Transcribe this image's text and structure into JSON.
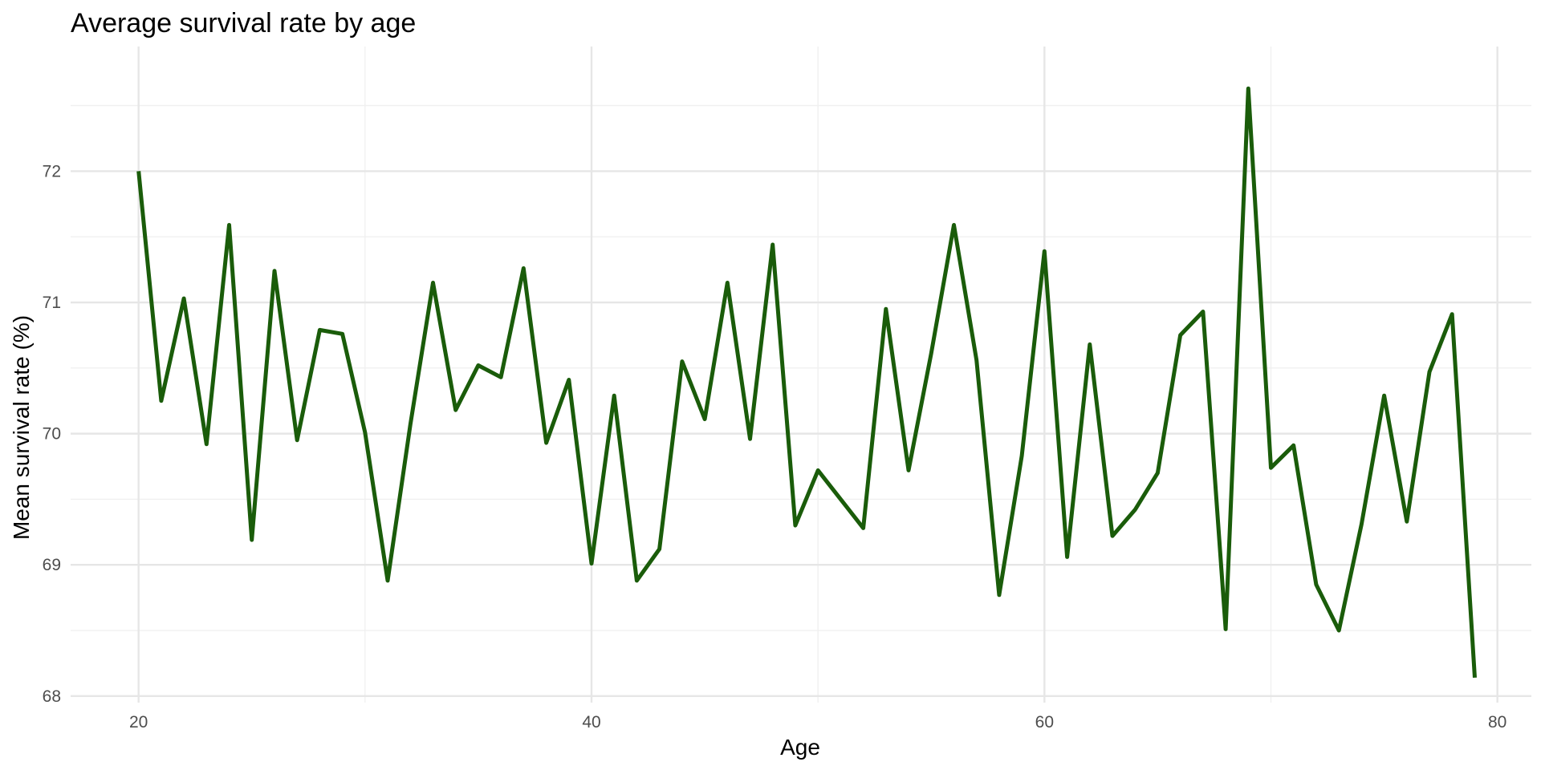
{
  "chart_data": {
    "type": "line",
    "title": "Average survival rate by age",
    "xlabel": "Age",
    "ylabel": "Mean survival rate (%)",
    "xlim": [
      17,
      81.5
    ],
    "ylim": [
      67.95,
      72.95
    ],
    "x_ticks": [
      20,
      40,
      60,
      80
    ],
    "x_tick_labels": [
      "20",
      "40",
      "60",
      "80"
    ],
    "x_minor_ticks": [
      30,
      50,
      70
    ],
    "y_ticks": [
      68,
      69,
      70,
      71,
      72
    ],
    "y_tick_labels": [
      "68",
      "69",
      "70",
      "71",
      "72"
    ],
    "y_minor_ticks": [
      68.5,
      69.5,
      70.5,
      71.5,
      72.5
    ],
    "grid": true,
    "legend": "none",
    "line_color": "#1a5c0a",
    "x": [
      20,
      21,
      22,
      23,
      24,
      25,
      26,
      27,
      28,
      29,
      30,
      31,
      32,
      33,
      34,
      35,
      36,
      37,
      38,
      39,
      40,
      41,
      42,
      43,
      44,
      45,
      46,
      47,
      48,
      49,
      50,
      51,
      52,
      53,
      54,
      55,
      56,
      57,
      58,
      59,
      60,
      61,
      62,
      63,
      64,
      65,
      66,
      67,
      68,
      69,
      70,
      71,
      72,
      73,
      74,
      75,
      76,
      77,
      78,
      79
    ],
    "series": [
      {
        "values": [
          72.0,
          70.25,
          71.03,
          69.92,
          71.59,
          69.19,
          71.24,
          69.95,
          70.79,
          70.76,
          70.01,
          68.88,
          70.07,
          71.15,
          70.18,
          70.52,
          70.43,
          71.26,
          69.93,
          70.41,
          69.01,
          70.29,
          68.88,
          69.12,
          70.55,
          70.11,
          71.15,
          69.96,
          71.44,
          69.3,
          69.72,
          69.5,
          69.28,
          70.95,
          69.72,
          70.61,
          71.59,
          70.56,
          68.77,
          69.83,
          71.39,
          69.06,
          70.68,
          69.22,
          69.42,
          69.7,
          70.75,
          70.93,
          68.51,
          72.63,
          69.74,
          69.91,
          68.85,
          68.5,
          69.31,
          70.29,
          69.33,
          70.47,
          70.91,
          68.14
        ]
      }
    ]
  }
}
